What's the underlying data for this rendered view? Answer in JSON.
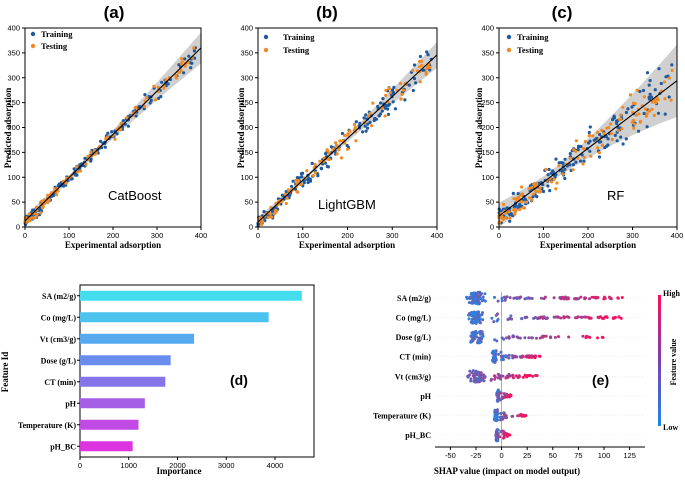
{
  "colors": {
    "training": "#1f5a9e",
    "testing": "#f08a24",
    "fit_line": "#000000",
    "ci_band": "#c8c8c8",
    "shap_low": "#1e88e5",
    "shap_high": "#ff0d57"
  },
  "chart_data": [
    {
      "type": "scatter",
      "panel": "(a)",
      "model": "CatBoost",
      "xlabel": "Experimental adsorption",
      "ylabel": "Predicted adsorption",
      "xlim": [
        0,
        400
      ],
      "ylim": [
        0,
        400
      ],
      "xticks": [
        "0",
        "100",
        "200",
        "300",
        "400"
      ],
      "yticks": [
        "0",
        "50",
        "100",
        "150",
        "200",
        "250",
        "300",
        "350",
        "400"
      ],
      "legend": [
        "Training",
        "Testing"
      ],
      "legend_position": "top-left",
      "fit": {
        "slope": 0.87,
        "intercept": 12
      },
      "noise": 16,
      "ci_spread": 12,
      "training_points": 170,
      "testing_points": 110
    },
    {
      "type": "scatter",
      "panel": "(b)",
      "model": "LightGBM",
      "xlabel": "Experimental adsorption",
      "ylabel": "Predicted adsorption",
      "xlim": [
        0,
        400
      ],
      "ylim": [
        0,
        400
      ],
      "xticks": [
        "0",
        "100",
        "200",
        "300",
        "400"
      ],
      "yticks": [
        "0",
        "50",
        "100",
        "150",
        "200",
        "250",
        "300",
        "350",
        "400"
      ],
      "legend": [
        "Training",
        "Testing"
      ],
      "legend_position": "top-left",
      "fit": {
        "slope": 0.84,
        "intercept": 10
      },
      "noise": 30,
      "ci_spread": 10,
      "training_points": 180,
      "testing_points": 120
    },
    {
      "type": "scatter",
      "panel": "(c)",
      "model": "RF",
      "xlabel": "Experimental adsorption",
      "ylabel": "Predicted adsorption",
      "xlim": [
        0,
        400
      ],
      "ylim": [
        0,
        400
      ],
      "xticks": [
        "0",
        "100",
        "200",
        "300",
        "400"
      ],
      "yticks": [
        "0",
        "50",
        "100",
        "150",
        "200",
        "250",
        "300",
        "350",
        "400"
      ],
      "legend": [
        "Training",
        "Testing"
      ],
      "legend_position": "top-left",
      "fit": {
        "slope": 0.68,
        "intercept": 22
      },
      "noise": 45,
      "ci_spread": 28,
      "training_points": 180,
      "testing_points": 130
    },
    {
      "type": "bar",
      "orientation": "horizontal",
      "panel": "(d)",
      "categories": [
        "SA (m2/g)",
        "Co (mg/L)",
        "Vt (cm3/g)",
        "Dose (g/L)",
        "CT (min)",
        "pH",
        "Temperature (K)",
        "pH_BC"
      ],
      "values": [
        4550,
        3870,
        2340,
        1860,
        1750,
        1330,
        1200,
        1080
      ],
      "bar_colors": [
        "#44ddee",
        "#4cc2ef",
        "#56a8ef",
        "#6a8cec",
        "#8475e8",
        "#a45fe6",
        "#c24ae4",
        "#dc35e0"
      ],
      "xlabel": "Importance",
      "ylabel": "Feature Id",
      "xlim": [
        0,
        4800
      ],
      "xticks": [
        "0",
        "1000",
        "2000",
        "3000",
        "4000"
      ]
    },
    {
      "type": "beeswarm",
      "panel": "(e)",
      "features": [
        "SA (m2/g)",
        "Co (mg/L)",
        "Dose (g/L)",
        "CT (min)",
        "Vt (cm3/g)",
        "pH",
        "Temperature (K)",
        "pH_BC"
      ],
      "xlabel": "SHAP value (impact on model output)",
      "xlim": [
        -65,
        140
      ],
      "xticks": [
        "-50",
        "-25",
        "0",
        "25",
        "50",
        "75",
        "100",
        "125"
      ],
      "xtick_values": [
        -50,
        -25,
        0,
        25,
        50,
        75,
        100,
        125
      ],
      "colorbar_label": "Feature value",
      "colorbar_high": "High",
      "colorbar_low": "Low",
      "ranges": [
        [
          -55,
          125
        ],
        [
          -55,
          125
        ],
        [
          -55,
          100
        ],
        [
          -15,
          40
        ],
        [
          -55,
          35
        ],
        [
          -8,
          10
        ],
        [
          -12,
          25
        ],
        [
          -10,
          8
        ]
      ]
    }
  ]
}
